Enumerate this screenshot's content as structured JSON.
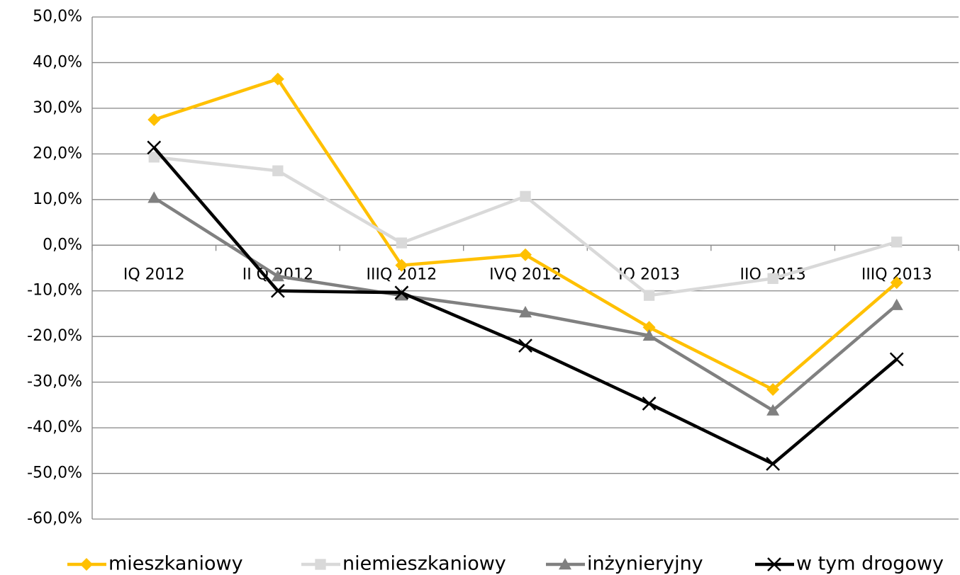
{
  "chart_data": {
    "type": "line",
    "categories": [
      "IQ 2012",
      "II Q 2012",
      "IIIQ 2012",
      "IVQ 2012",
      "IQ 2013",
      "IIQ 2013",
      "IIIQ 2013"
    ],
    "series": [
      {
        "name": "mieszkaniowy",
        "color": "#FFC000",
        "marker": "diamond",
        "values": [
          27.5,
          36.4,
          -4.4,
          -2.1,
          -18.0,
          -31.6,
          -8.2
        ]
      },
      {
        "name": "niemieszkaniowy",
        "color": "#D9D9D9",
        "marker": "square",
        "values": [
          19.3,
          16.3,
          0.5,
          10.7,
          -11.0,
          -7.3,
          0.7
        ]
      },
      {
        "name": "inżynieryjny",
        "color": "#808080",
        "marker": "triangle",
        "values": [
          10.4,
          -6.8,
          -11.0,
          -14.7,
          -19.8,
          -36.2,
          -13.1
        ]
      },
      {
        "name": "w tym drogowy",
        "color": "#000000",
        "marker": "x",
        "values": [
          21.4,
          -10.0,
          -10.4,
          -22.0,
          -34.7,
          -47.9,
          -25.0
        ]
      }
    ],
    "ylim": [
      -60,
      50
    ],
    "yticks": [
      {
        "value": -60,
        "label": "-60,0%"
      },
      {
        "value": -50,
        "label": "-50,0%"
      },
      {
        "value": -40,
        "label": "-40,0%"
      },
      {
        "value": -30,
        "label": "-30,0%"
      },
      {
        "value": -20,
        "label": "-20,0%"
      },
      {
        "value": -10,
        "label": "-10,0%"
      },
      {
        "value": 0,
        "label": "0,0%"
      },
      {
        "value": 10,
        "label": "10,0%"
      },
      {
        "value": 20,
        "label": "20,0%"
      },
      {
        "value": 30,
        "label": "30,0%"
      },
      {
        "value": 40,
        "label": "40,0%"
      },
      {
        "value": 50,
        "label": "50,0%"
      }
    ],
    "grid": true,
    "legend": "bottom"
  }
}
